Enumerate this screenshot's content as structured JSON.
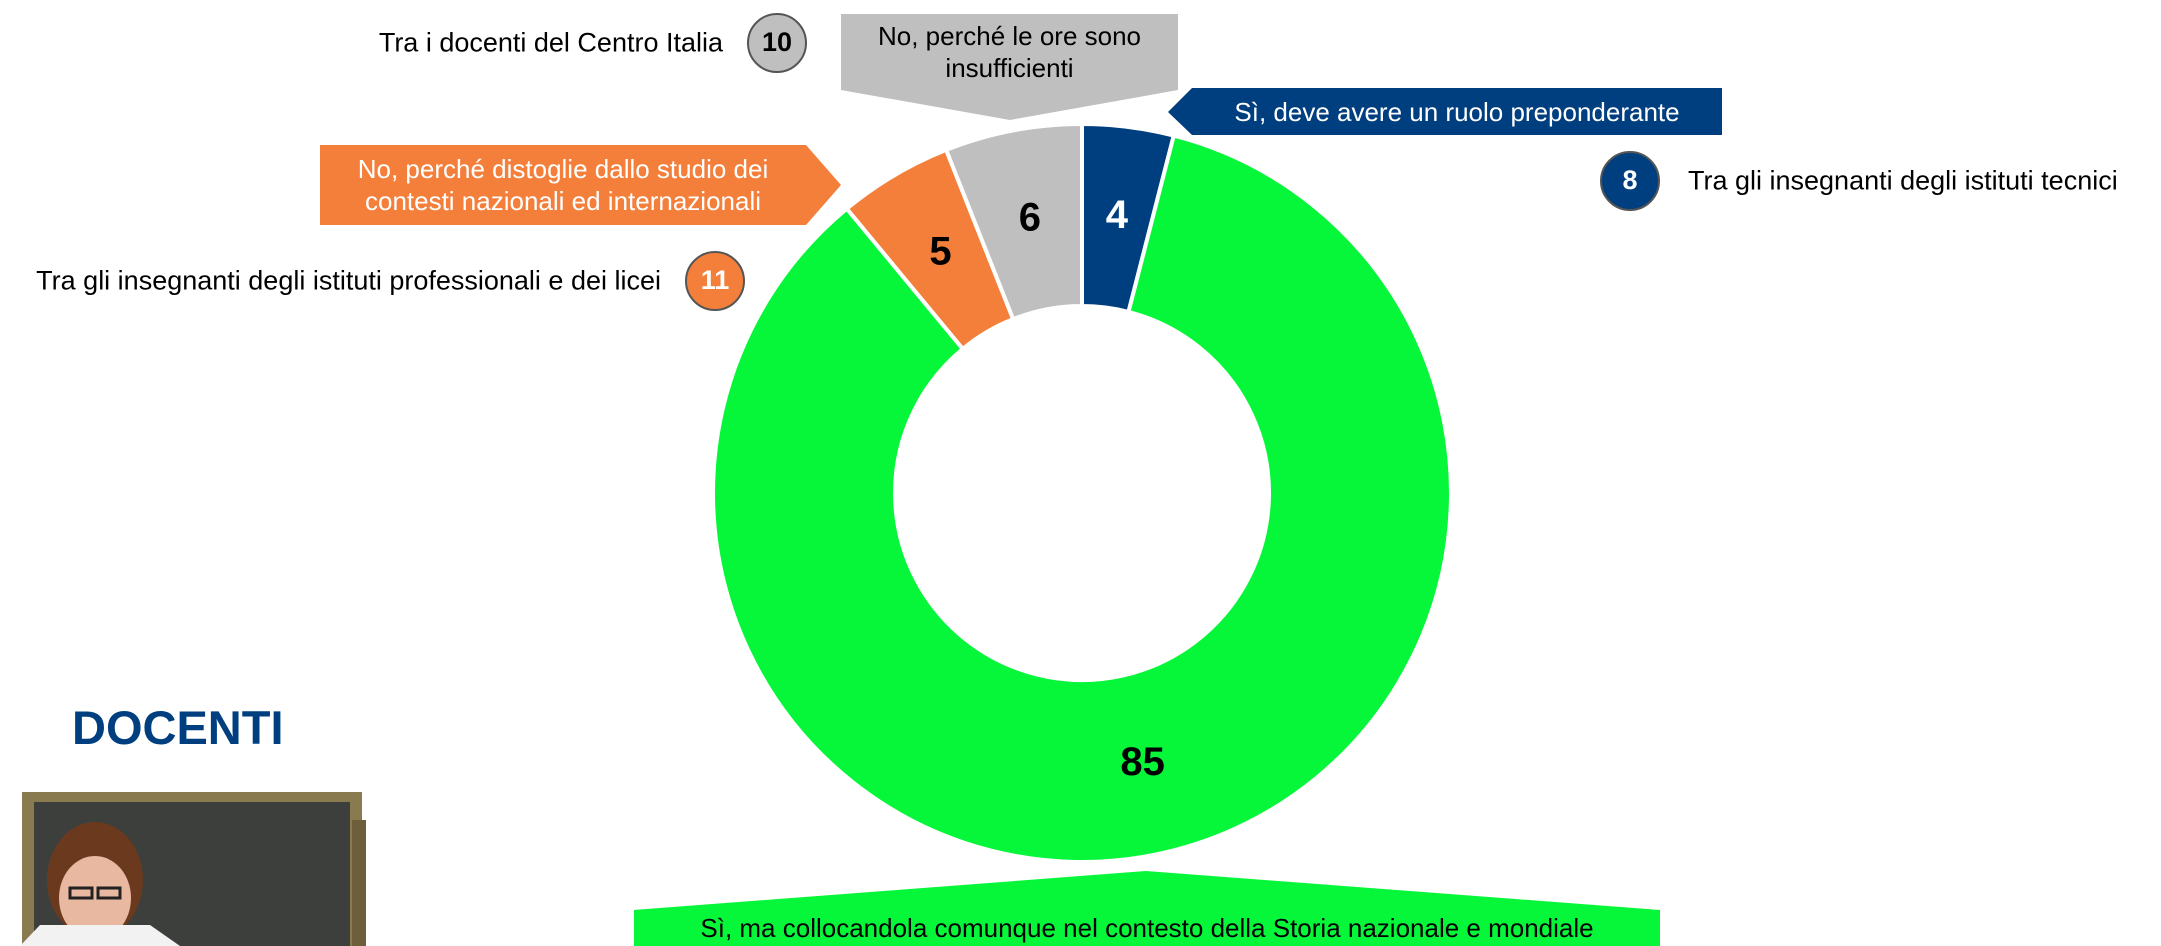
{
  "chart_data": {
    "type": "pie",
    "title": "DOCENTI",
    "categories": [
      "Sì, deve avere un ruolo preponderante",
      "Sì, ma collocandola comunque nel contesto della Storia nazionale e mondiale",
      "No, perché distoglie dallo studio dei contesti nazionali ed internazionali",
      "No, perché le ore sono insufficienti"
    ],
    "values": [
      4,
      85,
      5,
      6
    ],
    "colors": [
      "#003f7f",
      "#06f73a",
      "#f47f3a",
      "#bfbfbf"
    ],
    "annotations": [
      {
        "text": "Tra gli insegnanti degli istituti tecnici",
        "value": 8,
        "color": "#003f7f"
      },
      {
        "text": "Tra i docenti del Centro Italia",
        "value": 10,
        "color": "#bfbfbf"
      },
      {
        "text": "Tra gli insegnanti degli istituti professionali e dei licei",
        "value": 11,
        "color": "#f47f3a"
      }
    ]
  }
}
